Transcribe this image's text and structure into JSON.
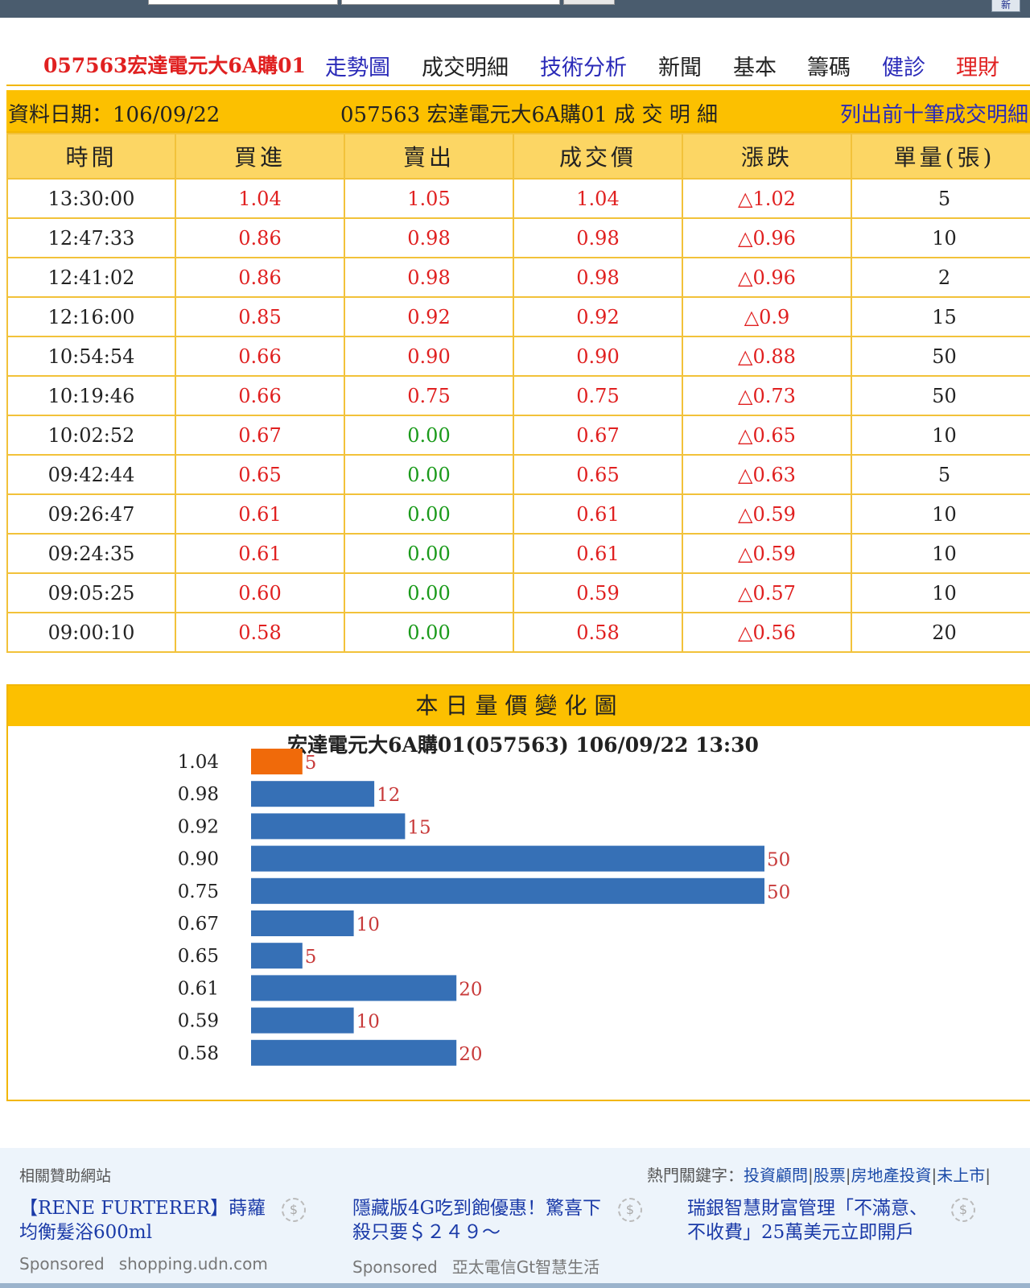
{
  "topbar": {
    "new_label": "新"
  },
  "nav": {
    "stock": "057563宏達電元大6A購01",
    "links": [
      "走勢圖",
      "成交明細",
      "技術分析",
      "新聞",
      "基本",
      "籌碼",
      "健診",
      "理財"
    ]
  },
  "table": {
    "date_label": "資料日期：106/09/22",
    "title": "057563 宏達電元大6A購01 成 交 明 細",
    "top10_link": "列出前十筆成交明細",
    "headers": [
      "時間",
      "買進",
      "賣出",
      "成交價",
      "漲跌",
      "單量(張)"
    ],
    "rows": [
      [
        "13:30:00",
        "1.04",
        "1.05",
        "1.04",
        "△1.02",
        "5"
      ],
      [
        "12:47:33",
        "0.86",
        "0.98",
        "0.98",
        "△0.96",
        "10"
      ],
      [
        "12:41:02",
        "0.86",
        "0.98",
        "0.98",
        "△0.96",
        "2"
      ],
      [
        "12:16:00",
        "0.85",
        "0.92",
        "0.92",
        "△0.9",
        "15"
      ],
      [
        "10:54:54",
        "0.66",
        "0.90",
        "0.90",
        "△0.88",
        "50"
      ],
      [
        "10:19:46",
        "0.66",
        "0.75",
        "0.75",
        "△0.73",
        "50"
      ],
      [
        "10:02:52",
        "0.67",
        "0.00",
        "0.67",
        "△0.65",
        "10"
      ],
      [
        "09:42:44",
        "0.65",
        "0.00",
        "0.65",
        "△0.63",
        "5"
      ],
      [
        "09:26:47",
        "0.61",
        "0.00",
        "0.61",
        "△0.59",
        "10"
      ],
      [
        "09:24:35",
        "0.61",
        "0.00",
        "0.61",
        "△0.59",
        "10"
      ],
      [
        "09:05:25",
        "0.60",
        "0.00",
        "0.59",
        "△0.57",
        "10"
      ],
      [
        "09:00:10",
        "0.58",
        "0.00",
        "0.58",
        "△0.56",
        "20"
      ]
    ]
  },
  "chart_section": {
    "heading": "本日量價變化圖"
  },
  "chart_data": {
    "type": "bar",
    "orientation": "horizontal",
    "title": "宏達電元大6A購01(057563) 106/09/22 13:30",
    "categories": [
      "1.04",
      "0.98",
      "0.92",
      "0.90",
      "0.75",
      "0.67",
      "0.65",
      "0.61",
      "0.59",
      "0.58"
    ],
    "values": [
      5,
      12,
      15,
      50,
      50,
      10,
      5,
      20,
      10,
      20
    ],
    "highlight_index": 0,
    "highlight_color": "#f06a0a",
    "bar_color": "#3670b6",
    "label_color": "#c83a3a",
    "xlim": [
      0,
      50
    ]
  },
  "ads": {
    "related_label": "相關贊助網站",
    "hot_label": "熱門關鍵字：",
    "hot_keywords": [
      "投資顧問",
      "股票",
      "房地產投資",
      "未上市"
    ],
    "items": [
      {
        "title": "【RENE FURTERER】蒔蘿均衡髮浴600ml",
        "sponsored": "Sponsored",
        "source": "shopping.udn.com"
      },
      {
        "title": "隱藏版4G吃到飽優惠！驚喜下殺只要＄２４９～",
        "sponsored": "Sponsored",
        "source": "亞太電信Gt智慧生活"
      },
      {
        "title": "瑞銀智慧財富管理「不滿意、不收費」25萬美元立即開戶",
        "sponsored": "",
        "source": ""
      }
    ]
  }
}
